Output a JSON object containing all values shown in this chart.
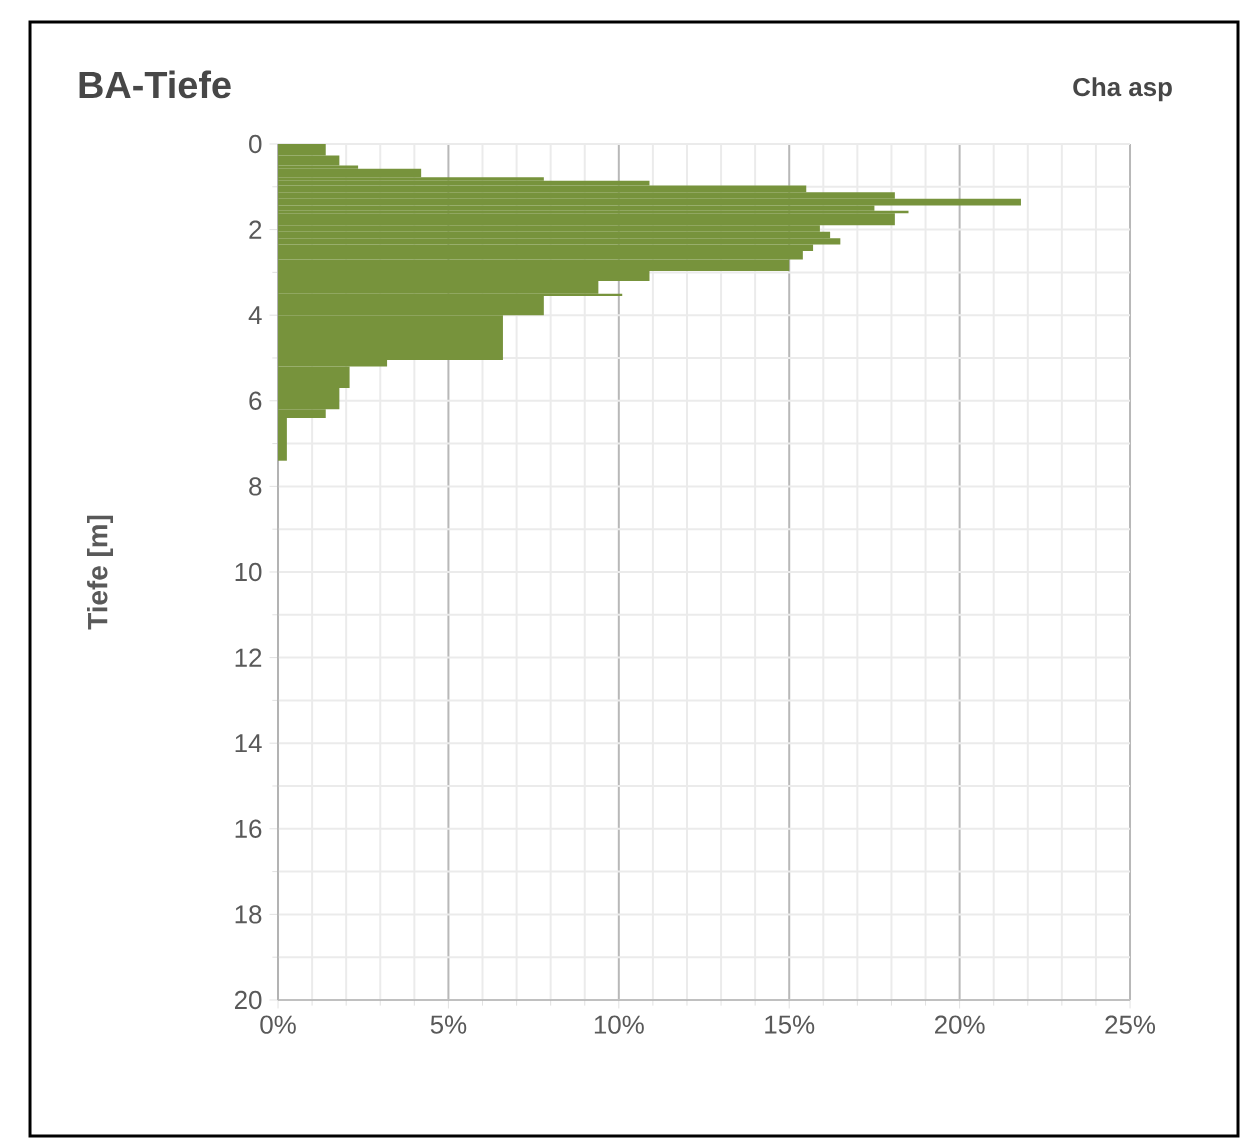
{
  "chart_data": {
    "type": "histogram",
    "orientation": "horizontal",
    "title": "BA-Tiefe",
    "subtitle": "Cha asp",
    "ylabel": "Tiefe [m]",
    "bins": [
      0,
      0.27,
      0.5,
      0.58,
      0.78,
      0.86,
      0.97,
      1.13,
      1.28,
      1.44,
      1.56,
      1.62,
      1.9,
      2.05,
      2.2,
      2.35,
      2.5,
      2.7,
      2.97,
      3.2,
      3.5,
      3.55,
      4.0,
      5.05,
      5.2,
      5.7,
      6.2,
      6.4,
      7.4
    ],
    "values": [
      1.4,
      1.8,
      2.35,
      4.2,
      7.8,
      10.9,
      15.5,
      18.1,
      21.8,
      17.5,
      18.5,
      18.1,
      15.9,
      16.2,
      16.5,
      15.7,
      15.4,
      15.0,
      10.9,
      9.4,
      10.1,
      7.8,
      6.6,
      3.2,
      2.1,
      1.8,
      1.4,
      0.26
    ],
    "color": "#77933c",
    "xlim": [
      0,
      25
    ],
    "xticks": [
      {
        "value": 0,
        "label": "0%"
      },
      {
        "value": 5,
        "label": "5%"
      },
      {
        "value": 10,
        "label": "10%"
      },
      {
        "value": 15,
        "label": "15%"
      },
      {
        "value": 20,
        "label": "20%"
      },
      {
        "value": 25,
        "label": "25%"
      }
    ],
    "ylim": [
      20,
      0
    ],
    "yticks": [
      0,
      2,
      4,
      6,
      8,
      10,
      12,
      14,
      16,
      18,
      20
    ],
    "grid": true
  }
}
